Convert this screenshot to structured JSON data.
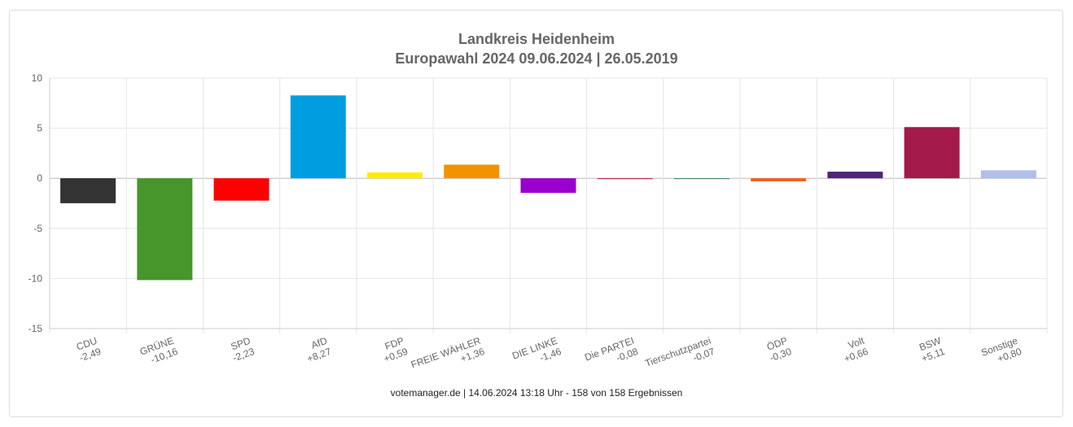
{
  "chart_data": {
    "type": "bar",
    "title": "Landkreis Heidenheim",
    "subtitle": "Europawahl 2024 09.06.2024  | 26.05.2019",
    "categories": [
      "CDU",
      "GRÜNE",
      "SPD",
      "AfD",
      "FDP",
      "FREIE WÄHLER",
      "DIE LINKE",
      "Die PARTEI",
      "Tierschutzpartei",
      "ÖDP",
      "Volt",
      "BSW",
      "Sonstige"
    ],
    "value_labels": [
      "-2,49",
      "-10,16",
      "-2,23",
      "+8,27",
      "+0,59",
      "+1,36",
      "-1,46",
      "-0,08",
      "-0,07",
      "-0,30",
      "+0,66",
      "+5,11",
      "+0,80"
    ],
    "values": [
      -2.49,
      -10.16,
      -2.23,
      8.27,
      0.59,
      1.36,
      -1.46,
      -0.08,
      -0.07,
      -0.3,
      0.66,
      5.11,
      0.8
    ],
    "colors": [
      "#333333",
      "#46962b",
      "#ff0000",
      "#009ee0",
      "#ffed00",
      "#f39200",
      "#9900cc",
      "#b5152b",
      "#2e8b57",
      "#f25d1c",
      "#502379",
      "#a31a4b",
      "#b0c0e8"
    ],
    "ylim": [
      -15,
      10
    ],
    "yticks": [
      10,
      5,
      0,
      -5,
      -10,
      -15
    ],
    "grid": true,
    "legend": "none"
  },
  "footer": "votemanager.de | 14.06.2024 13:18 Uhr - 158 von 158 Ergebnissen"
}
